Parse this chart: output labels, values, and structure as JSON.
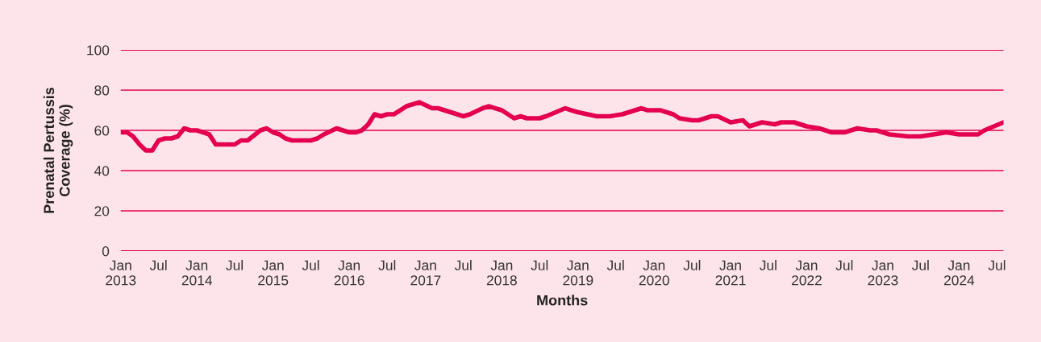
{
  "chart_data": {
    "type": "line",
    "xlabel": "Months",
    "ylabel": "Prenatal Pertussis\nCoverage (%)",
    "x": [
      "2013-01",
      "2013-02",
      "2013-03",
      "2013-04",
      "2013-05",
      "2013-06",
      "2013-07",
      "2013-08",
      "2013-09",
      "2013-10",
      "2013-11",
      "2013-12",
      "2014-01",
      "2014-03",
      "2014-04",
      "2014-05",
      "2014-07",
      "2014-08",
      "2014-09",
      "2014-11",
      "2014-12",
      "2015-01",
      "2015-02",
      "2015-03",
      "2015-04",
      "2015-05",
      "2015-07",
      "2015-08",
      "2015-09",
      "2015-11",
      "2015-12",
      "2016-01",
      "2016-02",
      "2016-03",
      "2016-04",
      "2016-05",
      "2016-06",
      "2016-07",
      "2016-08",
      "2016-09",
      "2016-10",
      "2016-12",
      "2017-02",
      "2017-03",
      "2017-05",
      "2017-07",
      "2017-08",
      "2017-10",
      "2017-11",
      "2017-12",
      "2018-01",
      "2018-03",
      "2018-04",
      "2018-05",
      "2018-07",
      "2018-08",
      "2018-11",
      "2018-12",
      "2019-01",
      "2019-04",
      "2019-06",
      "2019-08",
      "2019-09",
      "2019-11",
      "2019-12",
      "2020-02",
      "2020-04",
      "2020-05",
      "2020-07",
      "2020-08",
      "2020-10",
      "2020-11",
      "2021-01",
      "2021-03",
      "2021-04",
      "2021-06",
      "2021-08",
      "2021-09",
      "2021-11",
      "2021-12",
      "2022-01",
      "2022-03",
      "2022-05",
      "2022-07",
      "2022-09",
      "2022-11",
      "2022-12",
      "2023-02",
      "2023-05",
      "2023-07",
      "2023-09",
      "2023-11",
      "2024-01",
      "2024-04",
      "2024-05",
      "2024-08"
    ],
    "series": [
      {
        "color": "#e4004f",
        "values": [
          59,
          59,
          57,
          53,
          50,
          50,
          55,
          56,
          56,
          57,
          61,
          60,
          60,
          58,
          53,
          53,
          53,
          55,
          55,
          60,
          61,
          59,
          58,
          56,
          55,
          55,
          55,
          56,
          58,
          61,
          60,
          59,
          59,
          60,
          63,
          68,
          67,
          68,
          68,
          70,
          72,
          74,
          71,
          71,
          69,
          67,
          68,
          71,
          72,
          71,
          70,
          66,
          67,
          66,
          66,
          67,
          71,
          70,
          69,
          67,
          67,
          68,
          69,
          71,
          70,
          70,
          68,
          66,
          65,
          65,
          67,
          67,
          64,
          65,
          62,
          64,
          63,
          64,
          64,
          63,
          62,
          61,
          59,
          59,
          61,
          60,
          60,
          58,
          57,
          57,
          58,
          59,
          58,
          58,
          60,
          64
        ]
      }
    ],
    "xlim": [
      "2013-01",
      "2024-08"
    ],
    "xticks": [
      {
        "value": "2013-01",
        "label": "Jan\n2013"
      },
      {
        "value": "2013-07",
        "label": "Jul"
      },
      {
        "value": "2014-01",
        "label": "Jan\n2014"
      },
      {
        "value": "2014-07",
        "label": "Jul"
      },
      {
        "value": "2015-01",
        "label": "Jan\n2015"
      },
      {
        "value": "2015-07",
        "label": "Jul"
      },
      {
        "value": "2016-01",
        "label": "Jan\n2016"
      },
      {
        "value": "2016-07",
        "label": "Jul"
      },
      {
        "value": "2017-01",
        "label": "Jan\n2017"
      },
      {
        "value": "2017-07",
        "label": "Jul"
      },
      {
        "value": "2018-01",
        "label": "Jan\n2018"
      },
      {
        "value": "2018-07",
        "label": "Jul"
      },
      {
        "value": "2019-01",
        "label": "Jan\n2019"
      },
      {
        "value": "2019-07",
        "label": "Jul"
      },
      {
        "value": "2020-01",
        "label": "Jan\n2020"
      },
      {
        "value": "2020-07",
        "label": "Jul"
      },
      {
        "value": "2021-01",
        "label": "Jan\n2021"
      },
      {
        "value": "2021-07",
        "label": "Jul"
      },
      {
        "value": "2022-01",
        "label": "Jan\n2022"
      },
      {
        "value": "2022-07",
        "label": "Jul"
      },
      {
        "value": "2023-01",
        "label": "Jan\n2023"
      },
      {
        "value": "2023-07",
        "label": "Jul"
      },
      {
        "value": "2024-01",
        "label": "Jan\n2024"
      },
      {
        "value": "2024-07",
        "label": "Jul"
      }
    ],
    "ylim": [
      0,
      100
    ],
    "yticks": [
      0,
      20,
      40,
      60,
      80,
      100
    ],
    "grid": "y",
    "marker": "none",
    "line_style": "solid"
  }
}
